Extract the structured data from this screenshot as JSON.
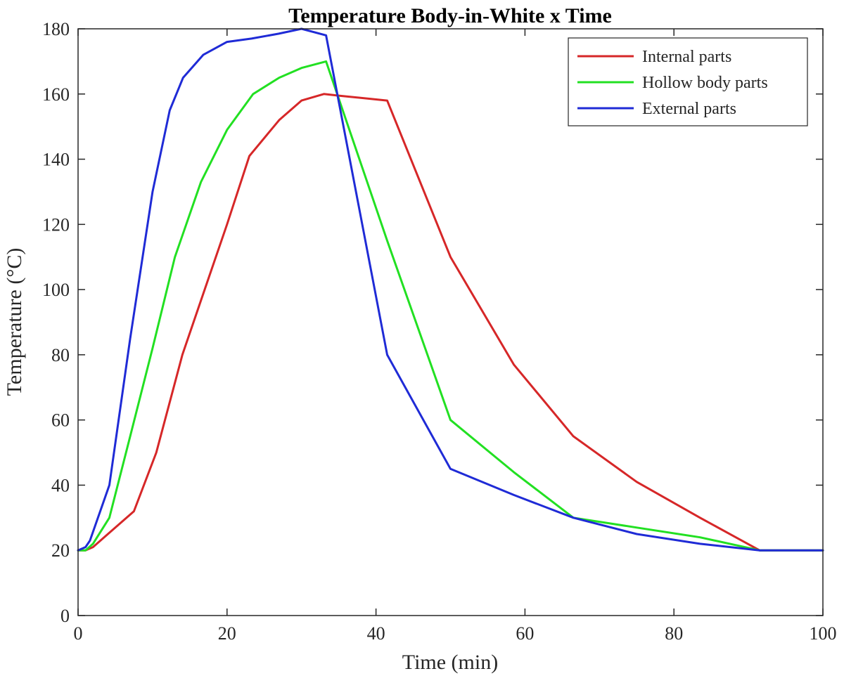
{
  "chart_data": {
    "type": "line",
    "title": "Temperature Body-in-White x Time",
    "xlabel": "Time (min)",
    "ylabel": "Temperature (°C)",
    "xlim": [
      0,
      100
    ],
    "ylim": [
      0,
      180
    ],
    "xticks": [
      0,
      20,
      40,
      60,
      80,
      100
    ],
    "yticks": [
      0,
      20,
      40,
      60,
      80,
      100,
      120,
      140,
      160,
      180
    ],
    "grid": false,
    "legend_position": "top-right",
    "series": [
      {
        "name": "Internal parts",
        "color": "#d62728",
        "x": [
          0,
          1,
          2,
          4,
          7.5,
          10.5,
          14,
          17,
          20,
          23,
          27,
          30,
          33,
          35,
          41.5,
          50,
          58.5,
          66.5,
          75,
          83.5,
          91.5,
          100
        ],
        "y": [
          20,
          20,
          21,
          25,
          32,
          50,
          80,
          100,
          120,
          141,
          152,
          158,
          160,
          159.5,
          158,
          110,
          77,
          55,
          41,
          30,
          20,
          20
        ]
      },
      {
        "name": "Hollow body parts",
        "color": "#22e022",
        "x": [
          0,
          1,
          2,
          4.2,
          7,
          10,
          13,
          16.5,
          20,
          23.5,
          27,
          30,
          33.3,
          41.5,
          50,
          58.5,
          66.5,
          75,
          83.5,
          91.5,
          100
        ],
        "y": [
          20,
          20,
          22,
          30,
          55,
          82,
          110,
          133,
          149,
          160,
          165,
          168,
          170,
          115,
          60,
          44,
          30,
          27,
          24,
          20,
          20
        ]
      },
      {
        "name": "External parts",
        "color": "#1f2bd6",
        "x": [
          0,
          1,
          1.6,
          4.2,
          7,
          10,
          12.3,
          14.1,
          16.8,
          20,
          23.3,
          26.9,
          30,
          33.3,
          41.5,
          50,
          58.5,
          66.5,
          75,
          83.5,
          91.5,
          100
        ],
        "y": [
          20,
          21,
          23,
          40,
          85,
          130,
          155,
          165,
          172,
          176,
          177,
          178.5,
          180,
          178,
          80,
          45,
          37,
          30,
          25,
          22,
          20,
          20
        ]
      }
    ]
  }
}
